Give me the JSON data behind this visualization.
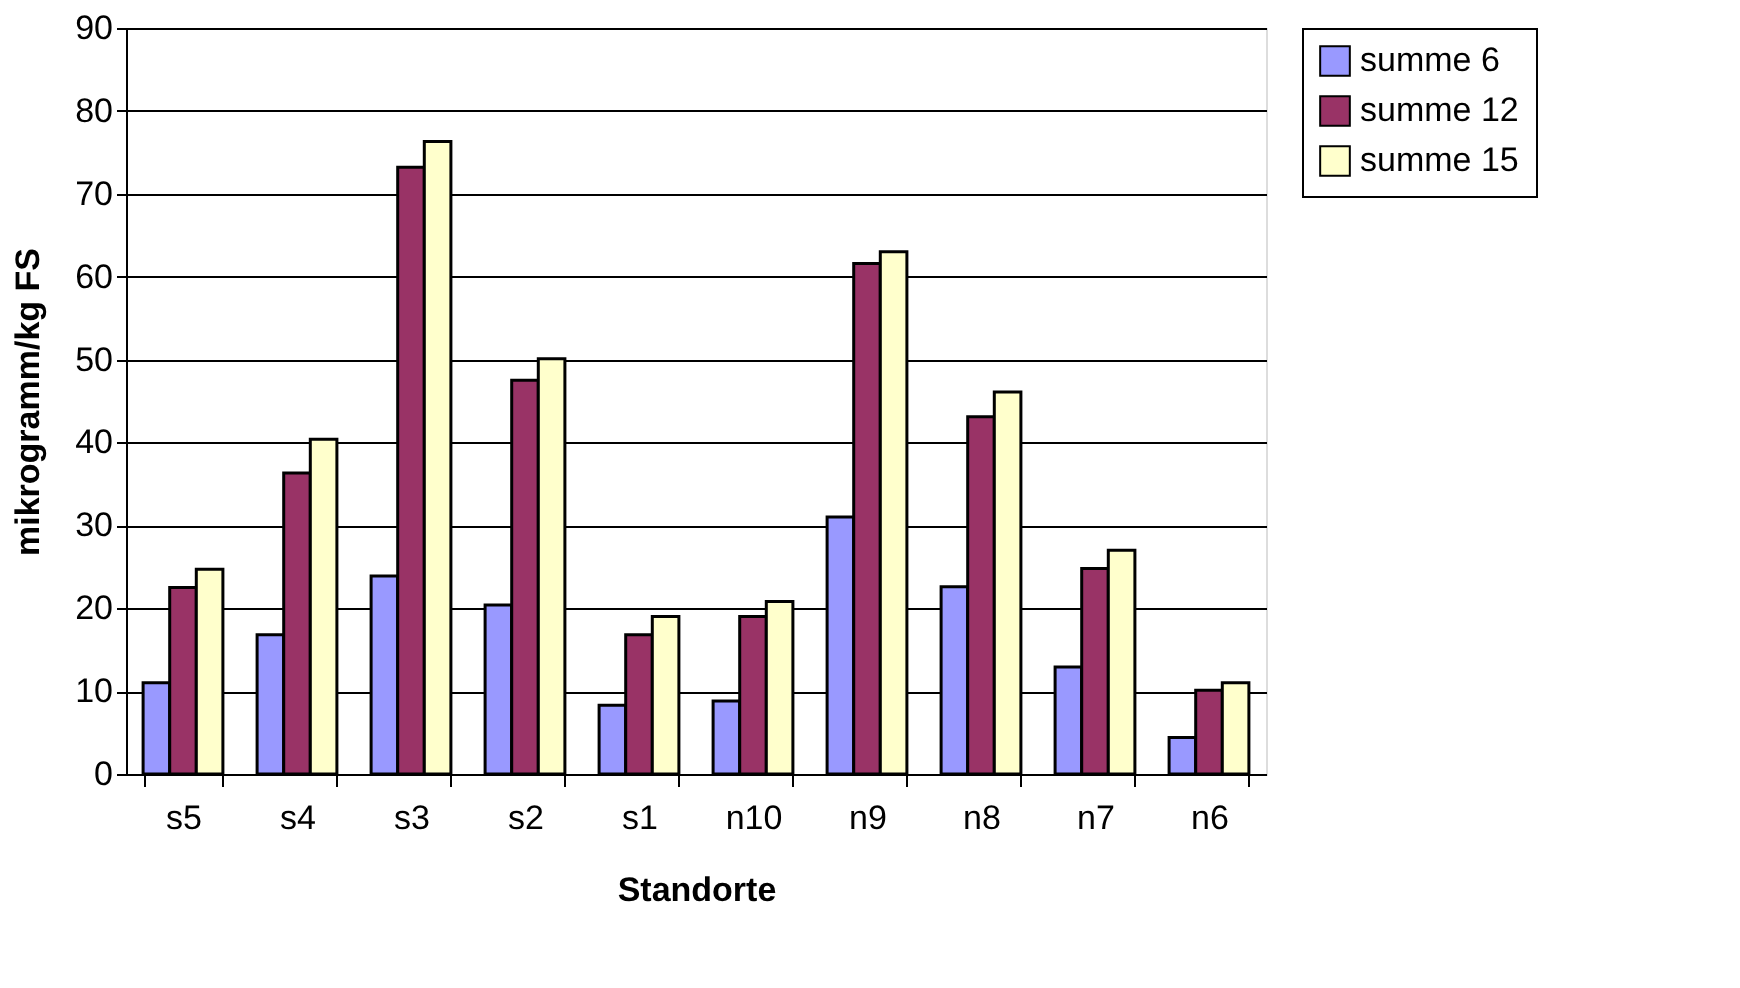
{
  "chart_data": {
    "type": "bar",
    "xlabel": "Standorte",
    "ylabel": "mikrogramm/kg FS",
    "categories": [
      "s5",
      "s4",
      "s3",
      "s2",
      "s1",
      "n10",
      "n9",
      "n8",
      "n7",
      "n6"
    ],
    "series": [
      {
        "name": "summe 6",
        "color": "#9999ff",
        "values": [
          11,
          16.8,
          23.9,
          20.4,
          8.3,
          8.8,
          31,
          22.6,
          12.9,
          4.4
        ]
      },
      {
        "name": "summe 12",
        "color": "#993366",
        "values": [
          22.5,
          36.3,
          73.2,
          47.5,
          16.8,
          19,
          61.6,
          43.1,
          24.8,
          10.1
        ]
      },
      {
        "name": "summe 15",
        "color": "#ffffcc",
        "values": [
          24.7,
          40.4,
          76.3,
          50.1,
          19,
          20.8,
          63,
          46.1,
          27,
          11
        ]
      }
    ],
    "ylim": [
      0,
      90
    ],
    "yticks": [
      0,
      10,
      20,
      30,
      40,
      50,
      60,
      70,
      80,
      90
    ],
    "grid": "y",
    "legend": "right"
  }
}
